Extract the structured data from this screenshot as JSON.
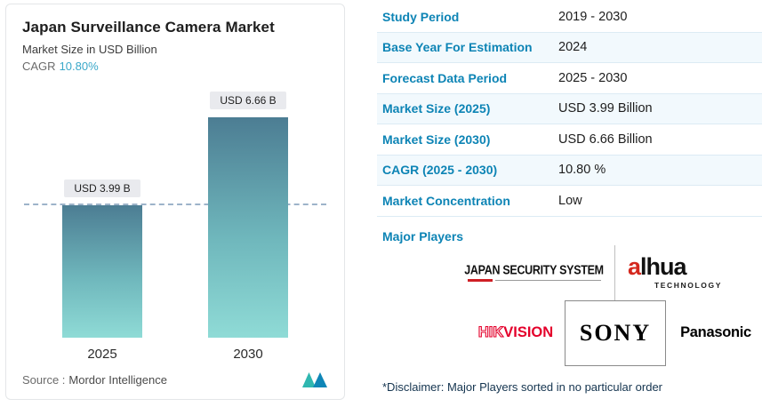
{
  "chart_card": {
    "title": "Japan Surveillance Camera Market",
    "subtitle": "Market Size in USD Billion",
    "cagr_label": "CAGR",
    "cagr_value": "10.80%",
    "source_label": "Source :",
    "source_value": "Mordor Intelligence"
  },
  "chart_data": {
    "type": "bar",
    "categories": [
      "2025",
      "2030"
    ],
    "values": [
      3.99,
      6.66
    ],
    "bar_labels": [
      "USD 3.99 B",
      "USD 6.66 B"
    ],
    "title": "Japan Surveillance Camera Market",
    "xlabel": "",
    "ylabel": "Market Size in USD Billion",
    "ylim": [
      0,
      7
    ],
    "reference_line": 3.99,
    "grid": false,
    "legend": false
  },
  "facts": {
    "rows": [
      {
        "label": "Study Period",
        "value": "2019 - 2030"
      },
      {
        "label": "Base Year For Estimation",
        "value": "2024"
      },
      {
        "label": "Forecast Data Period",
        "value": "2025 - 2030"
      },
      {
        "label": "Market Size (2025)",
        "value": "USD 3.99 Billion"
      },
      {
        "label": "Market Size (2030)",
        "value": "USD 6.66 Billion"
      },
      {
        "label": "CAGR (2025 - 2030)",
        "value": "10.80 %"
      },
      {
        "label": "Market Concentration",
        "value": "Low"
      }
    ],
    "major_players_label": "Major Players",
    "players": [
      {
        "key": "jss",
        "name": "JAPAN SECURITY SYSTEM"
      },
      {
        "key": "dahua",
        "name": "alhua",
        "sub": "TECHNOLOGY"
      },
      {
        "key": "hikvision",
        "name": "HIKVISION"
      },
      {
        "key": "sony",
        "name": "SONY"
      },
      {
        "key": "panasonic",
        "name": "Panasonic"
      }
    ],
    "disclaimer": "*Disclaimer: Major Players sorted in no particular order"
  },
  "colors": {
    "accent_teal": "#0d84b5",
    "cagr_teal": "#3aa8c9",
    "bar_gradient_top": "#4c7d93",
    "bar_gradient_bottom": "#8fdbd6",
    "row_alt_bg": "#f2f9fd",
    "row_divider": "#dcebf4",
    "reference_line": "#9db3c9",
    "hikvision_red": "#e4002b",
    "dahua_red": "#d4281e",
    "jss_red": "#cf1f25"
  },
  "icons": {
    "mordor_logo": "mordor-intelligence-logo"
  }
}
